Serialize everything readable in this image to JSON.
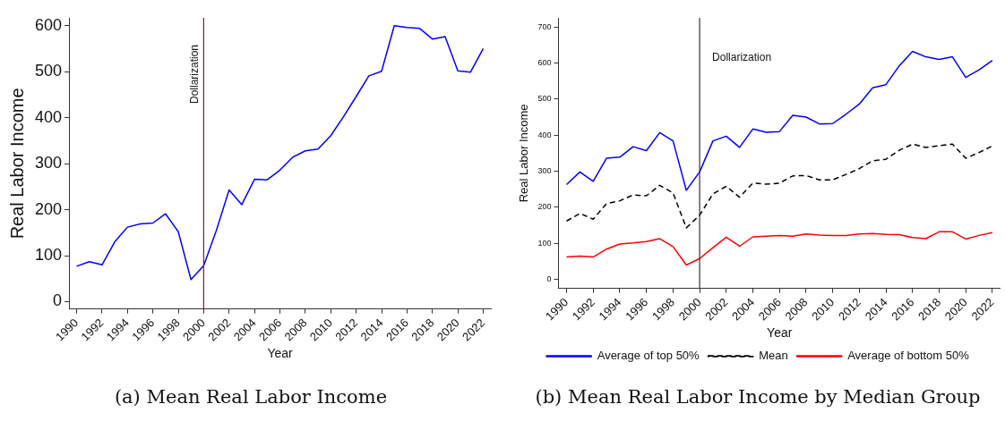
{
  "chart_data": [
    {
      "type": "line",
      "title": "(a) Mean Real Labor Income",
      "xlabel": "Year",
      "ylabel": "Real Labor Income",
      "x": [
        1990,
        1991,
        1992,
        1993,
        1994,
        1995,
        1996,
        1997,
        1998,
        1999,
        2000,
        2001,
        2002,
        2003,
        2004,
        2005,
        2006,
        2007,
        2008,
        2009,
        2010,
        2011,
        2012,
        2013,
        2014,
        2015,
        2016,
        2017,
        2018,
        2019,
        2020,
        2021,
        2022
      ],
      "series": [
        {
          "color": "#0000ff",
          "values": [
            77,
            87,
            80,
            130,
            162,
            169,
            171,
            191,
            152,
            48,
            78,
            155,
            243,
            211,
            266,
            265,
            286,
            314,
            328,
            332,
            361,
            402,
            446,
            491,
            501,
            600,
            596,
            594,
            571,
            576,
            502,
            499,
            550
          ]
        }
      ],
      "xlim": [
        1989.4,
        2022.6
      ],
      "xticks": [
        1990,
        1992,
        1994,
        1996,
        1998,
        2000,
        2002,
        2004,
        2006,
        2008,
        2010,
        2012,
        2014,
        2016,
        2018,
        2020,
        2022
      ],
      "ylim": [
        -16,
        617
      ],
      "yticks": [
        0,
        100,
        200,
        300,
        400,
        500,
        600
      ],
      "ref_lines": [
        {
          "axis": "x",
          "value": 2000,
          "label": "Dollarization",
          "color": "#8b1a1a"
        }
      ],
      "grid": false,
      "legend": false
    },
    {
      "type": "line",
      "title": "(b) Mean Real Labor Income by Median Group",
      "xlabel": "Year",
      "ylabel": "Real Labor Income",
      "x": [
        1990,
        1991,
        1992,
        1993,
        1994,
        1995,
        1996,
        1997,
        1998,
        1999,
        2000,
        2001,
        2002,
        2003,
        2004,
        2005,
        2006,
        2007,
        2008,
        2009,
        2010,
        2011,
        2012,
        2013,
        2014,
        2015,
        2016,
        2017,
        2018,
        2019,
        2020,
        2021,
        2022
      ],
      "series": [
        {
          "name": "Average of top 50%",
          "color": "#0000ff",
          "values": [
            263,
            298,
            272,
            336,
            339,
            368,
            357,
            407,
            384,
            247,
            298,
            384,
            397,
            366,
            417,
            408,
            410,
            455,
            450,
            431,
            432,
            458,
            486,
            531,
            540,
            592,
            632,
            617,
            610,
            617,
            560,
            581,
            607
          ]
        },
        {
          "name": "Mean",
          "color": "#000000",
          "line_style": "dashed",
          "values": [
            162,
            183,
            167,
            210,
            218,
            234,
            232,
            261,
            240,
            143,
            178,
            237,
            258,
            228,
            267,
            264,
            267,
            287,
            288,
            276,
            276,
            291,
            307,
            329,
            333,
            358,
            375,
            366,
            371,
            375,
            336,
            352,
            370
          ]
        },
        {
          "name": "Average of bottom 50%",
          "color": "#ff0000",
          "values": [
            62,
            65,
            62,
            84,
            98,
            101,
            105,
            113,
            91,
            40,
            58,
            88,
            117,
            92,
            118,
            120,
            122,
            120,
            126,
            123,
            122,
            122,
            126,
            127,
            125,
            124,
            116,
            113,
            132,
            132,
            112,
            122,
            130
          ]
        }
      ],
      "xlim": [
        1989.4,
        2022.6
      ],
      "xticks": [
        1990,
        1992,
        1994,
        1996,
        1998,
        2000,
        2002,
        2004,
        2006,
        2008,
        2010,
        2012,
        2014,
        2016,
        2018,
        2020,
        2022
      ],
      "ylim": [
        -25,
        725
      ],
      "yticks": [
        0,
        100,
        200,
        300,
        400,
        500,
        600,
        700
      ],
      "ref_lines": [
        {
          "axis": "x",
          "value": 2000,
          "label": "Dollarization",
          "color": "#333333"
        }
      ],
      "grid": false,
      "legend": "bottom"
    }
  ]
}
